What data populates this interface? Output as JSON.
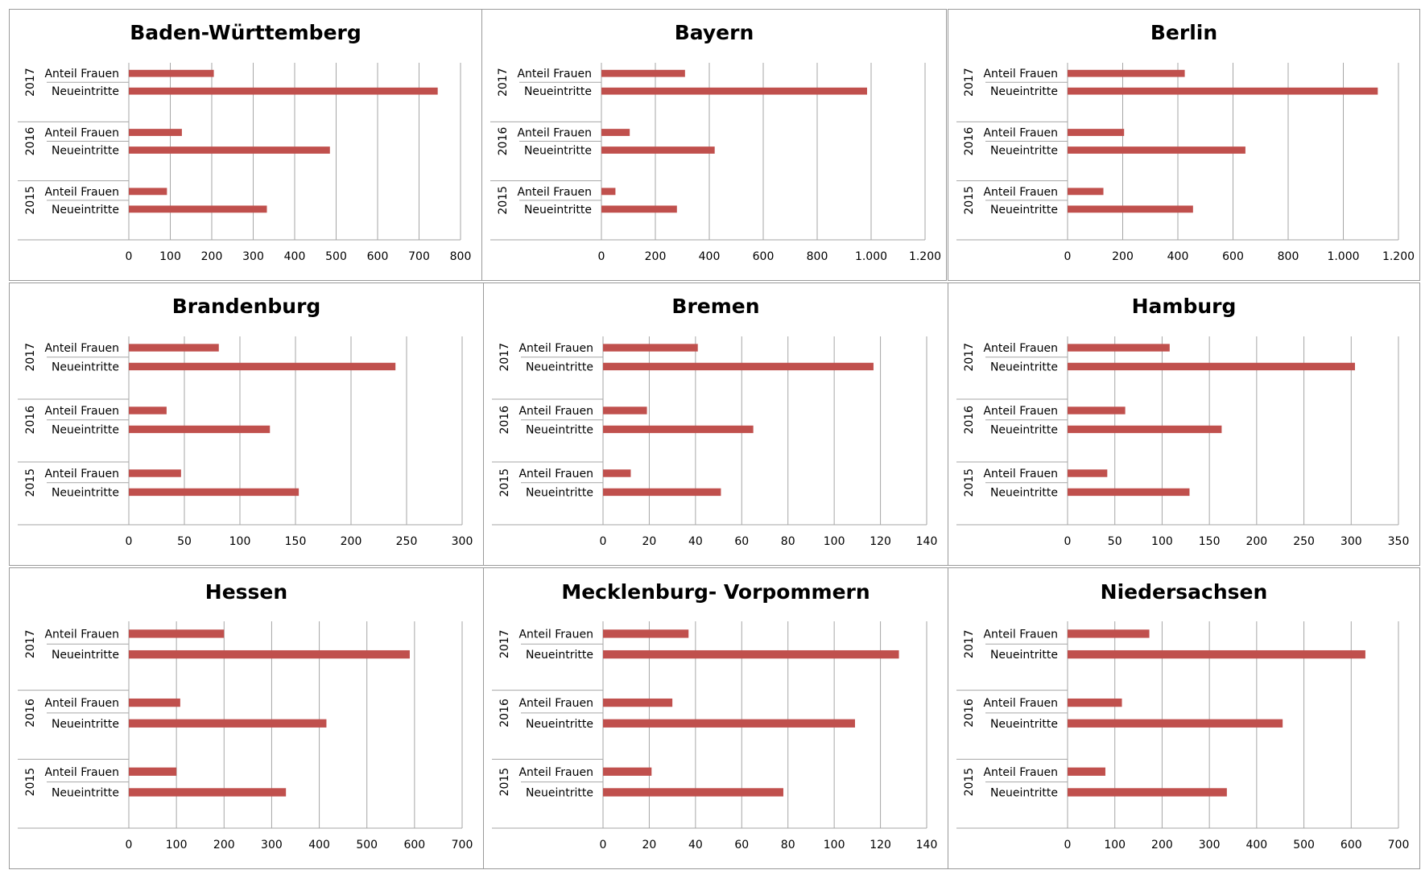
{
  "colors": {
    "bar": "#c0504d",
    "grid": "#a6a6a6",
    "axis": "#a6a6a6",
    "border": "#9a9a9a"
  },
  "chart_data": [
    {
      "type": "bar",
      "title": "Baden-Württemberg",
      "years": [
        "2017",
        "2016",
        "2015"
      ],
      "categories": [
        "Anteil Frauen",
        "Neueintritte"
      ],
      "values": [
        [
          205,
          745
        ],
        [
          128,
          485
        ],
        [
          92,
          333
        ]
      ],
      "xlim": [
        0,
        800
      ],
      "ticks": [
        0,
        100,
        200,
        300,
        400,
        500,
        600,
        700,
        800
      ],
      "tick_labels": [
        "0",
        "100",
        "200",
        "300",
        "400",
        "500",
        "600",
        "700",
        "800"
      ]
    },
    {
      "type": "bar",
      "title": "Bayern",
      "years": [
        "2017",
        "2016",
        "2015"
      ],
      "categories": [
        "Anteil Frauen",
        "Neueintritte"
      ],
      "values": [
        [
          310,
          985
        ],
        [
          105,
          420
        ],
        [
          52,
          280
        ]
      ],
      "xlim": [
        0,
        1200
      ],
      "ticks": [
        0,
        200,
        400,
        600,
        800,
        1000,
        1200
      ],
      "tick_labels": [
        "0",
        "200",
        "400",
        "600",
        "800",
        "1.000",
        "1.200"
      ]
    },
    {
      "type": "bar",
      "title": "Berlin",
      "years": [
        "2017",
        "2016",
        "2015"
      ],
      "categories": [
        "Anteil Frauen",
        "Neueintritte"
      ],
      "values": [
        [
          425,
          1125
        ],
        [
          205,
          645
        ],
        [
          130,
          455
        ]
      ],
      "xlim": [
        0,
        1200
      ],
      "ticks": [
        0,
        200,
        400,
        600,
        800,
        1000,
        1200
      ],
      "tick_labels": [
        "0",
        "200",
        "400",
        "600",
        "800",
        "1.000",
        "1.200"
      ]
    },
    {
      "type": "bar",
      "title": "Brandenburg",
      "years": [
        "2017",
        "2016",
        "2015"
      ],
      "categories": [
        "Anteil Frauen",
        "Neueintritte"
      ],
      "values": [
        [
          81,
          240
        ],
        [
          34,
          127
        ],
        [
          47,
          153
        ]
      ],
      "xlim": [
        0,
        300
      ],
      "ticks": [
        0,
        50,
        100,
        150,
        200,
        250,
        300
      ],
      "tick_labels": [
        "0",
        "50",
        "100",
        "150",
        "200",
        "250",
        "300"
      ]
    },
    {
      "type": "bar",
      "title": "Bremen",
      "years": [
        "2017",
        "2016",
        "2015"
      ],
      "categories": [
        "Anteil Frauen",
        "Neueintritte"
      ],
      "values": [
        [
          41,
          117
        ],
        [
          19,
          65
        ],
        [
          12,
          51
        ]
      ],
      "xlim": [
        0,
        140
      ],
      "ticks": [
        0,
        20,
        40,
        60,
        80,
        100,
        120,
        140
      ],
      "tick_labels": [
        "0",
        "20",
        "40",
        "60",
        "80",
        "100",
        "120",
        "140"
      ]
    },
    {
      "type": "bar",
      "title": "Hamburg",
      "years": [
        "2017",
        "2016",
        "2015"
      ],
      "categories": [
        "Anteil Frauen",
        "Neueintritte"
      ],
      "values": [
        [
          108,
          304
        ],
        [
          61,
          163
        ],
        [
          42,
          129
        ]
      ],
      "xlim": [
        0,
        350
      ],
      "ticks": [
        0,
        50,
        100,
        150,
        200,
        250,
        300,
        350
      ],
      "tick_labels": [
        "0",
        "50",
        "100",
        "150",
        "200",
        "250",
        "300",
        "350"
      ]
    },
    {
      "type": "bar",
      "title": "Hessen",
      "years": [
        "2017",
        "2016",
        "2015"
      ],
      "categories": [
        "Anteil Frauen",
        "Neueintritte"
      ],
      "values": [
        [
          200,
          590
        ],
        [
          108,
          415
        ],
        [
          100,
          330
        ]
      ],
      "xlim": [
        0,
        700
      ],
      "ticks": [
        0,
        100,
        200,
        300,
        400,
        500,
        600,
        700
      ],
      "tick_labels": [
        "0",
        "100",
        "200",
        "300",
        "400",
        "500",
        "600",
        "700"
      ]
    },
    {
      "type": "bar",
      "title": "Mecklenburg- Vorpommern",
      "years": [
        "2017",
        "2016",
        "2015"
      ],
      "categories": [
        "Anteil Frauen",
        "Neueintritte"
      ],
      "values": [
        [
          37,
          128
        ],
        [
          30,
          109
        ],
        [
          21,
          78
        ]
      ],
      "xlim": [
        0,
        140
      ],
      "ticks": [
        0,
        20,
        40,
        60,
        80,
        100,
        120,
        140
      ],
      "tick_labels": [
        "0",
        "20",
        "40",
        "60",
        "80",
        "100",
        "120",
        "140"
      ]
    },
    {
      "type": "bar",
      "title": "Niedersachsen",
      "years": [
        "2017",
        "2016",
        "2015"
      ],
      "categories": [
        "Anteil Frauen",
        "Neueintritte"
      ],
      "values": [
        [
          173,
          630
        ],
        [
          115,
          455
        ],
        [
          80,
          337
        ]
      ],
      "xlim": [
        0,
        700
      ],
      "ticks": [
        0,
        100,
        200,
        300,
        400,
        500,
        600,
        700
      ],
      "tick_labels": [
        "0",
        "100",
        "200",
        "300",
        "400",
        "500",
        "600",
        "700"
      ]
    }
  ]
}
